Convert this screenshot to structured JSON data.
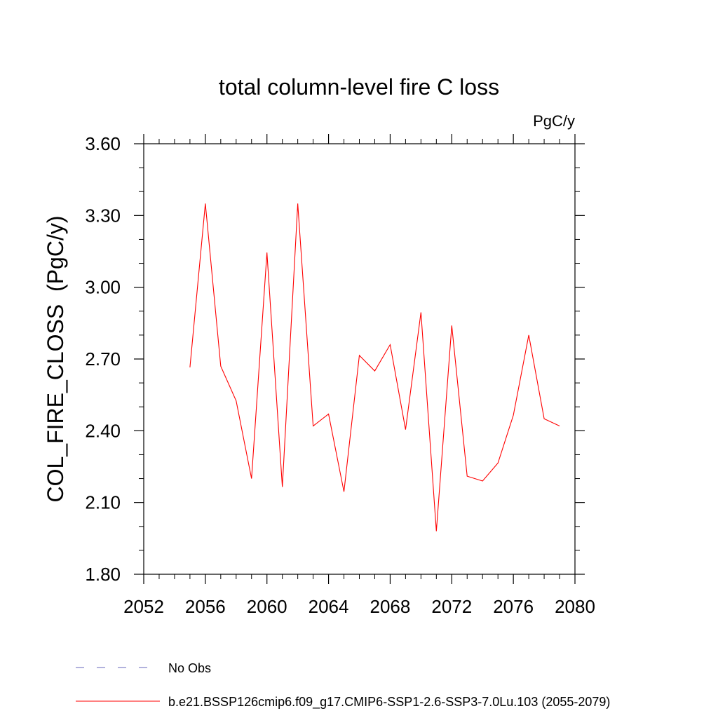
{
  "chart_data": {
    "type": "line",
    "title": "total column-level fire C loss",
    "units_label": "PgC/y",
    "ylabel": "COL_FIRE_CLOSS  (PgC/y)",
    "xlabel": "",
    "xlim": [
      2052,
      2080
    ],
    "ylim": [
      1.8,
      3.6
    ],
    "x_ticks": [
      2052,
      2056,
      2060,
      2064,
      2068,
      2072,
      2076,
      2080
    ],
    "x_tick_labels": [
      "2052",
      "2056",
      "2060",
      "2064",
      "2068",
      "2072",
      "2076",
      "2080"
    ],
    "y_ticks": [
      1.8,
      2.1,
      2.4,
      2.7,
      3.0,
      3.3,
      3.6
    ],
    "y_tick_labels": [
      "1.80",
      "2.10",
      "2.40",
      "2.70",
      "3.00",
      "3.30",
      "3.60"
    ],
    "grid": false,
    "legend_position": "bottom",
    "series": [
      {
        "name": "b.e21.BSSP126cmip6.f09_g17.CMIP6-SSP1-2.6-SSP3-7.0Lu.103 (2055-2079)",
        "color": "#ff0000",
        "line_style": "solid",
        "x": [
          2055,
          2056,
          2057,
          2058,
          2059,
          2060,
          2061,
          2062,
          2063,
          2064,
          2065,
          2066,
          2067,
          2068,
          2069,
          2070,
          2071,
          2072,
          2073,
          2074,
          2075,
          2076,
          2077,
          2078,
          2079
        ],
        "y": [
          2.665,
          3.35,
          2.67,
          2.525,
          2.2,
          3.145,
          2.165,
          3.35,
          2.42,
          2.47,
          2.145,
          2.715,
          2.65,
          2.76,
          2.405,
          2.895,
          1.98,
          2.84,
          2.21,
          2.19,
          2.265,
          2.465,
          2.8,
          2.45,
          2.42
        ]
      }
    ],
    "legend": [
      {
        "label": "No Obs",
        "color": "#6666bb",
        "line_style": "dashed"
      },
      {
        "label": "b.e21.BSSP126cmip6.f09_g17.CMIP6-SSP1-2.6-SSP3-7.0Lu.103 (2055-2079)",
        "color": "#ff0000",
        "line_style": "solid"
      }
    ]
  }
}
